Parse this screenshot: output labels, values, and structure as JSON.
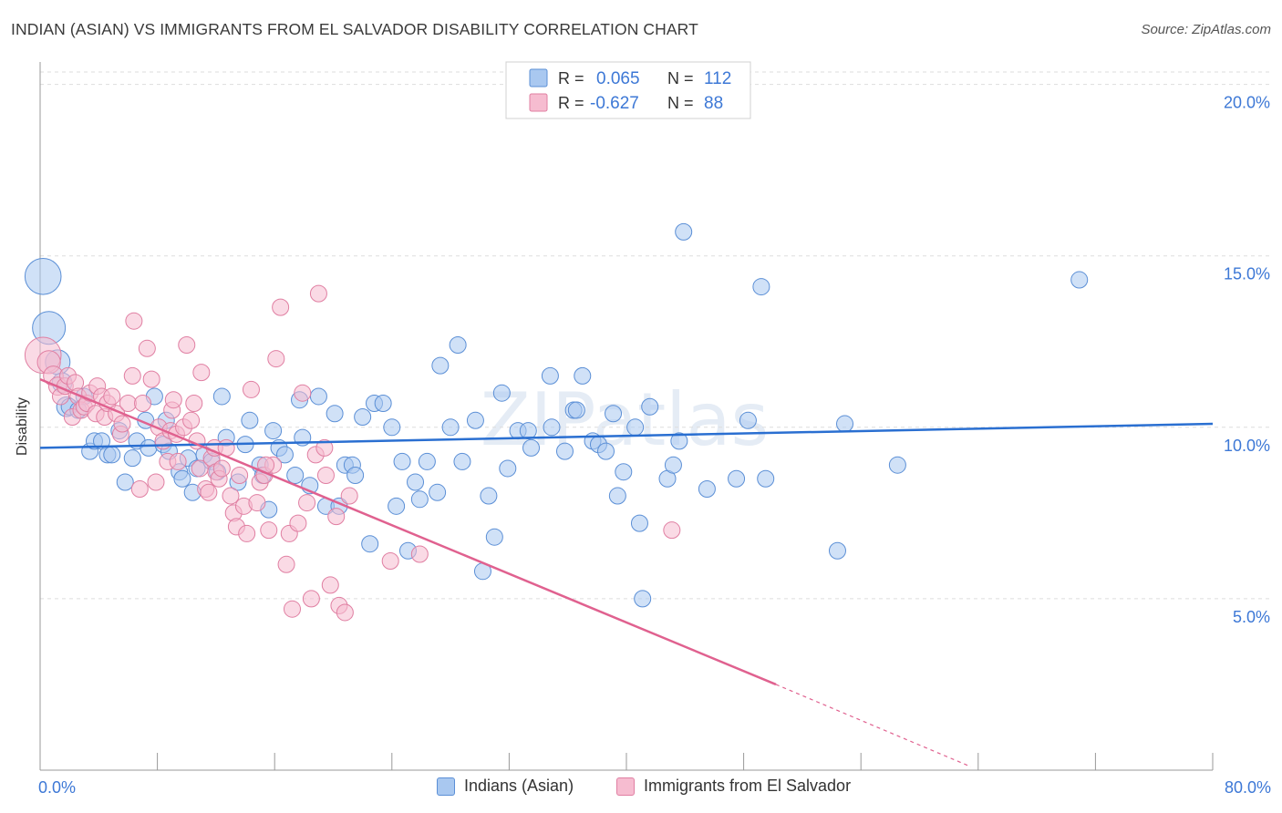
{
  "title": "INDIAN (ASIAN) VS IMMIGRANTS FROM EL SALVADOR DISABILITY CORRELATION CHART",
  "source": "Source: ZipAtlas.com",
  "watermark": "ZIPatlas",
  "colors": {
    "blue_fill": "#a9c8f0",
    "blue_stroke": "#5b8fd6",
    "blue_line": "#2a6fd1",
    "pink_fill": "#f6bcd0",
    "pink_stroke": "#e07fa2",
    "pink_line": "#e0618f",
    "tick_label": "#3d78d6",
    "grid": "#dddddd"
  },
  "legend": {
    "rows": [
      {
        "r_label": "R =",
        "r_value": "0.065",
        "n_label": "N =",
        "n_value": "112"
      },
      {
        "r_label": "R =",
        "r_value": "-0.627",
        "n_label": "N =",
        "n_value": "88"
      }
    ]
  },
  "bottom_legend": [
    "Indians (Asian)",
    "Immigrants from El Salvador"
  ],
  "chart_data": {
    "type": "scatter",
    "title": "INDIAN (ASIAN) VS IMMIGRANTS FROM EL SALVADOR DISABILITY CORRELATION CHART",
    "xlabel": "",
    "ylabel": "Disability",
    "xlim": [
      0,
      80
    ],
    "ylim": [
      0,
      21
    ],
    "x_tick_labels": [
      "0.0%",
      "80.0%"
    ],
    "y_ticks": [
      5,
      10,
      15,
      20
    ],
    "y_tick_labels": [
      "5.0%",
      "10.0%",
      "15.0%",
      "20.0%"
    ],
    "grid": "horizontal dashed",
    "legend_position": "top-center",
    "series": [
      {
        "name": "Indians (Asian)",
        "r": 0.065,
        "n": 112,
        "trend": {
          "x": [
            0,
            80
          ],
          "y": [
            9.4,
            10.1
          ]
        },
        "points": [
          {
            "x": 0.2,
            "y": 14.4,
            "s": 2.2
          },
          {
            "x": 0.6,
            "y": 12.9,
            "s": 2
          },
          {
            "x": 1.2,
            "y": 11.9,
            "s": 1.5
          },
          {
            "x": 1.5,
            "y": 11.3,
            "s": 1.2
          },
          {
            "x": 1.8,
            "y": 10.6,
            "s": 1.2
          },
          {
            "x": 2.0,
            "y": 10.6,
            "s": 1
          },
          {
            "x": 2.6,
            "y": 10.5,
            "s": 1
          },
          {
            "x": 3.0,
            "y": 10.9,
            "s": 1
          },
          {
            "x": 3.4,
            "y": 9.3,
            "s": 1
          },
          {
            "x": 3.7,
            "y": 9.6,
            "s": 1
          },
          {
            "x": 4.2,
            "y": 9.6,
            "s": 1
          },
          {
            "x": 4.6,
            "y": 9.2,
            "s": 1
          },
          {
            "x": 4.9,
            "y": 9.2,
            "s": 1
          },
          {
            "x": 5.4,
            "y": 9.9,
            "s": 1
          },
          {
            "x": 5.8,
            "y": 8.4,
            "s": 1
          },
          {
            "x": 6.3,
            "y": 9.1,
            "s": 1
          },
          {
            "x": 6.6,
            "y": 9.6,
            "s": 1
          },
          {
            "x": 7.2,
            "y": 10.2,
            "s": 1
          },
          {
            "x": 7.4,
            "y": 9.4,
            "s": 1
          },
          {
            "x": 7.8,
            "y": 10.9,
            "s": 1
          },
          {
            "x": 8.4,
            "y": 9.5,
            "s": 1
          },
          {
            "x": 8.6,
            "y": 10.2,
            "s": 1
          },
          {
            "x": 8.8,
            "y": 9.3,
            "s": 1
          },
          {
            "x": 9.5,
            "y": 8.7,
            "s": 1
          },
          {
            "x": 9.7,
            "y": 8.5,
            "s": 1
          },
          {
            "x": 10.1,
            "y": 9.1,
            "s": 1
          },
          {
            "x": 10.4,
            "y": 8.1,
            "s": 1
          },
          {
            "x": 10.7,
            "y": 8.8,
            "s": 1
          },
          {
            "x": 11.2,
            "y": 9.2,
            "s": 1
          },
          {
            "x": 11.7,
            "y": 9.0,
            "s": 1
          },
          {
            "x": 12.1,
            "y": 8.7,
            "s": 1
          },
          {
            "x": 12.4,
            "y": 10.9,
            "s": 1
          },
          {
            "x": 12.7,
            "y": 9.7,
            "s": 1
          },
          {
            "x": 13.5,
            "y": 8.4,
            "s": 1
          },
          {
            "x": 14.0,
            "y": 9.5,
            "s": 1
          },
          {
            "x": 14.3,
            "y": 10.2,
            "s": 1
          },
          {
            "x": 15.0,
            "y": 8.9,
            "s": 1
          },
          {
            "x": 15.2,
            "y": 8.6,
            "s": 1
          },
          {
            "x": 15.6,
            "y": 7.6,
            "s": 1
          },
          {
            "x": 15.9,
            "y": 9.9,
            "s": 1
          },
          {
            "x": 16.3,
            "y": 9.4,
            "s": 1
          },
          {
            "x": 16.7,
            "y": 9.2,
            "s": 1
          },
          {
            "x": 17.4,
            "y": 8.6,
            "s": 1
          },
          {
            "x": 17.7,
            "y": 10.8,
            "s": 1
          },
          {
            "x": 17.9,
            "y": 9.7,
            "s": 1
          },
          {
            "x": 18.4,
            "y": 8.3,
            "s": 1
          },
          {
            "x": 19.0,
            "y": 10.9,
            "s": 1
          },
          {
            "x": 19.5,
            "y": 7.7,
            "s": 1
          },
          {
            "x": 20.1,
            "y": 10.4,
            "s": 1
          },
          {
            "x": 20.4,
            "y": 7.7,
            "s": 1
          },
          {
            "x": 20.8,
            "y": 8.9,
            "s": 1
          },
          {
            "x": 21.3,
            "y": 8.9,
            "s": 1
          },
          {
            "x": 21.5,
            "y": 8.6,
            "s": 1
          },
          {
            "x": 22.0,
            "y": 10.3,
            "s": 1
          },
          {
            "x": 22.5,
            "y": 6.6,
            "s": 1
          },
          {
            "x": 22.8,
            "y": 10.7,
            "s": 1
          },
          {
            "x": 23.4,
            "y": 10.7,
            "s": 1
          },
          {
            "x": 24.0,
            "y": 10.0,
            "s": 1
          },
          {
            "x": 24.3,
            "y": 7.7,
            "s": 1
          },
          {
            "x": 24.7,
            "y": 9.0,
            "s": 1
          },
          {
            "x": 25.1,
            "y": 6.4,
            "s": 1
          },
          {
            "x": 25.6,
            "y": 8.4,
            "s": 1
          },
          {
            "x": 25.9,
            "y": 7.9,
            "s": 1
          },
          {
            "x": 26.4,
            "y": 9.0,
            "s": 1
          },
          {
            "x": 27.1,
            "y": 8.1,
            "s": 1
          },
          {
            "x": 27.3,
            "y": 11.8,
            "s": 1
          },
          {
            "x": 28.0,
            "y": 10.0,
            "s": 1
          },
          {
            "x": 28.5,
            "y": 12.4,
            "s": 1
          },
          {
            "x": 28.8,
            "y": 9.0,
            "s": 1
          },
          {
            "x": 29.7,
            "y": 10.2,
            "s": 1
          },
          {
            "x": 30.2,
            "y": 5.8,
            "s": 1
          },
          {
            "x": 30.6,
            "y": 8.0,
            "s": 1
          },
          {
            "x": 31.0,
            "y": 6.8,
            "s": 1
          },
          {
            "x": 31.5,
            "y": 11.0,
            "s": 1
          },
          {
            "x": 31.9,
            "y": 8.8,
            "s": 1
          },
          {
            "x": 32.6,
            "y": 9.9,
            "s": 1
          },
          {
            "x": 33.3,
            "y": 9.9,
            "s": 1
          },
          {
            "x": 33.5,
            "y": 9.4,
            "s": 1
          },
          {
            "x": 34.9,
            "y": 10.0,
            "s": 1
          },
          {
            "x": 34.8,
            "y": 11.5,
            "s": 1
          },
          {
            "x": 35.8,
            "y": 9.3,
            "s": 1
          },
          {
            "x": 36.4,
            "y": 10.5,
            "s": 1
          },
          {
            "x": 36.6,
            "y": 10.5,
            "s": 1
          },
          {
            "x": 37.0,
            "y": 11.5,
            "s": 1
          },
          {
            "x": 37.7,
            "y": 9.6,
            "s": 1
          },
          {
            "x": 38.1,
            "y": 9.5,
            "s": 1
          },
          {
            "x": 38.6,
            "y": 9.3,
            "s": 1
          },
          {
            "x": 39.1,
            "y": 10.4,
            "s": 1
          },
          {
            "x": 39.4,
            "y": 8.0,
            "s": 1
          },
          {
            "x": 39.8,
            "y": 8.7,
            "s": 1
          },
          {
            "x": 40.6,
            "y": 10.0,
            "s": 1
          },
          {
            "x": 40.9,
            "y": 7.2,
            "s": 1
          },
          {
            "x": 41.1,
            "y": 5.0,
            "s": 1
          },
          {
            "x": 41.6,
            "y": 10.6,
            "s": 1
          },
          {
            "x": 42.8,
            "y": 8.5,
            "s": 1
          },
          {
            "x": 43.2,
            "y": 8.9,
            "s": 1
          },
          {
            "x": 43.6,
            "y": 9.6,
            "s": 1
          },
          {
            "x": 43.9,
            "y": 15.7,
            "s": 1
          },
          {
            "x": 45.5,
            "y": 8.2,
            "s": 1
          },
          {
            "x": 47.5,
            "y": 8.5,
            "s": 1
          },
          {
            "x": 48.3,
            "y": 10.2,
            "s": 1
          },
          {
            "x": 49.5,
            "y": 8.5,
            "s": 1
          },
          {
            "x": 49.2,
            "y": 14.1,
            "s": 1
          },
          {
            "x": 54.4,
            "y": 6.4,
            "s": 1
          },
          {
            "x": 54.9,
            "y": 10.1,
            "s": 1
          },
          {
            "x": 58.5,
            "y": 8.9,
            "s": 1
          },
          {
            "x": 70.9,
            "y": 14.3,
            "s": 1
          }
        ]
      },
      {
        "name": "Immigrants from El Salvador",
        "r": -0.627,
        "n": 88,
        "trend": {
          "x": [
            0,
            50.2
          ],
          "y": [
            11.4,
            2.5
          ]
        },
        "trend_dashed": {
          "x": [
            50.2,
            63.5
          ],
          "y": [
            2.5,
            0.1
          ]
        },
        "points": [
          {
            "x": 0.2,
            "y": 12.1,
            "s": 2.2
          },
          {
            "x": 0.6,
            "y": 11.9,
            "s": 1.4
          },
          {
            "x": 0.9,
            "y": 11.5,
            "s": 1.2
          },
          {
            "x": 1.2,
            "y": 11.2,
            "s": 1.1
          },
          {
            "x": 1.4,
            "y": 10.9,
            "s": 1
          },
          {
            "x": 1.7,
            "y": 11.2,
            "s": 1
          },
          {
            "x": 1.9,
            "y": 11.5,
            "s": 1
          },
          {
            "x": 2.2,
            "y": 10.3,
            "s": 1
          },
          {
            "x": 2.4,
            "y": 11.3,
            "s": 1
          },
          {
            "x": 2.6,
            "y": 10.9,
            "s": 1
          },
          {
            "x": 2.8,
            "y": 10.5,
            "s": 1
          },
          {
            "x": 3.0,
            "y": 10.6,
            "s": 1
          },
          {
            "x": 3.2,
            "y": 10.7,
            "s": 1
          },
          {
            "x": 3.4,
            "y": 11.0,
            "s": 1
          },
          {
            "x": 3.8,
            "y": 10.4,
            "s": 1
          },
          {
            "x": 3.9,
            "y": 11.2,
            "s": 1
          },
          {
            "x": 4.2,
            "y": 10.9,
            "s": 1
          },
          {
            "x": 4.4,
            "y": 10.3,
            "s": 1
          },
          {
            "x": 4.6,
            "y": 10.7,
            "s": 1
          },
          {
            "x": 4.9,
            "y": 10.9,
            "s": 1
          },
          {
            "x": 5.2,
            "y": 10.4,
            "s": 1
          },
          {
            "x": 5.5,
            "y": 9.8,
            "s": 1
          },
          {
            "x": 5.6,
            "y": 10.1,
            "s": 1
          },
          {
            "x": 6.0,
            "y": 10.7,
            "s": 1
          },
          {
            "x": 6.3,
            "y": 11.5,
            "s": 1
          },
          {
            "x": 6.4,
            "y": 13.1,
            "s": 1
          },
          {
            "x": 6.8,
            "y": 8.2,
            "s": 1
          },
          {
            "x": 7.0,
            "y": 10.7,
            "s": 1
          },
          {
            "x": 7.3,
            "y": 12.3,
            "s": 1
          },
          {
            "x": 7.6,
            "y": 11.4,
            "s": 1
          },
          {
            "x": 7.9,
            "y": 8.4,
            "s": 1
          },
          {
            "x": 8.1,
            "y": 10.0,
            "s": 1
          },
          {
            "x": 8.4,
            "y": 9.6,
            "s": 1
          },
          {
            "x": 8.7,
            "y": 9.0,
            "s": 1
          },
          {
            "x": 8.9,
            "y": 9.9,
            "s": 1
          },
          {
            "x": 9.0,
            "y": 10.5,
            "s": 1
          },
          {
            "x": 9.1,
            "y": 10.8,
            "s": 1
          },
          {
            "x": 9.3,
            "y": 9.8,
            "s": 1
          },
          {
            "x": 9.4,
            "y": 9.0,
            "s": 1
          },
          {
            "x": 9.8,
            "y": 10.0,
            "s": 1
          },
          {
            "x": 10.0,
            "y": 12.4,
            "s": 1
          },
          {
            "x": 10.3,
            "y": 10.2,
            "s": 1
          },
          {
            "x": 10.5,
            "y": 10.7,
            "s": 1
          },
          {
            "x": 10.7,
            "y": 9.6,
            "s": 1
          },
          {
            "x": 10.9,
            "y": 8.8,
            "s": 1
          },
          {
            "x": 11.0,
            "y": 11.6,
            "s": 1
          },
          {
            "x": 11.3,
            "y": 8.2,
            "s": 1
          },
          {
            "x": 11.5,
            "y": 8.1,
            "s": 1
          },
          {
            "x": 11.7,
            "y": 9.1,
            "s": 1
          },
          {
            "x": 11.9,
            "y": 9.4,
            "s": 1
          },
          {
            "x": 12.0,
            "y": 8.7,
            "s": 1
          },
          {
            "x": 12.2,
            "y": 8.5,
            "s": 1
          },
          {
            "x": 12.4,
            "y": 8.8,
            "s": 1
          },
          {
            "x": 12.7,
            "y": 9.4,
            "s": 1
          },
          {
            "x": 13.0,
            "y": 8.0,
            "s": 1
          },
          {
            "x": 13.2,
            "y": 7.5,
            "s": 1
          },
          {
            "x": 13.4,
            "y": 7.1,
            "s": 1
          },
          {
            "x": 13.6,
            "y": 8.6,
            "s": 1
          },
          {
            "x": 13.9,
            "y": 7.7,
            "s": 1
          },
          {
            "x": 14.1,
            "y": 6.9,
            "s": 1
          },
          {
            "x": 14.4,
            "y": 11.1,
            "s": 1
          },
          {
            "x": 14.8,
            "y": 7.8,
            "s": 1
          },
          {
            "x": 15.0,
            "y": 8.4,
            "s": 1
          },
          {
            "x": 15.3,
            "y": 8.6,
            "s": 1
          },
          {
            "x": 15.6,
            "y": 7.0,
            "s": 1
          },
          {
            "x": 15.9,
            "y": 8.9,
            "s": 1
          },
          {
            "x": 16.1,
            "y": 12.0,
            "s": 1
          },
          {
            "x": 16.4,
            "y": 13.5,
            "s": 1
          },
          {
            "x": 16.8,
            "y": 6.0,
            "s": 1
          },
          {
            "x": 17.0,
            "y": 6.9,
            "s": 1
          },
          {
            "x": 17.2,
            "y": 4.7,
            "s": 1
          },
          {
            "x": 17.6,
            "y": 7.2,
            "s": 1
          },
          {
            "x": 17.9,
            "y": 11.0,
            "s": 1
          },
          {
            "x": 18.2,
            "y": 7.8,
            "s": 1
          },
          {
            "x": 18.5,
            "y": 5.0,
            "s": 1
          },
          {
            "x": 18.8,
            "y": 9.2,
            "s": 1
          },
          {
            "x": 19.0,
            "y": 13.9,
            "s": 1
          },
          {
            "x": 19.4,
            "y": 9.4,
            "s": 1
          },
          {
            "x": 19.5,
            "y": 8.6,
            "s": 1
          },
          {
            "x": 19.8,
            "y": 5.4,
            "s": 1
          },
          {
            "x": 20.2,
            "y": 7.4,
            "s": 1
          },
          {
            "x": 20.4,
            "y": 4.8,
            "s": 1
          },
          {
            "x": 20.8,
            "y": 4.6,
            "s": 1
          },
          {
            "x": 21.1,
            "y": 8.0,
            "s": 1
          },
          {
            "x": 23.9,
            "y": 6.1,
            "s": 1
          },
          {
            "x": 25.9,
            "y": 6.3,
            "s": 1
          },
          {
            "x": 43.1,
            "y": 7.0,
            "s": 1
          },
          {
            "x": 15.4,
            "y": 8.9,
            "s": 1
          }
        ]
      }
    ]
  }
}
